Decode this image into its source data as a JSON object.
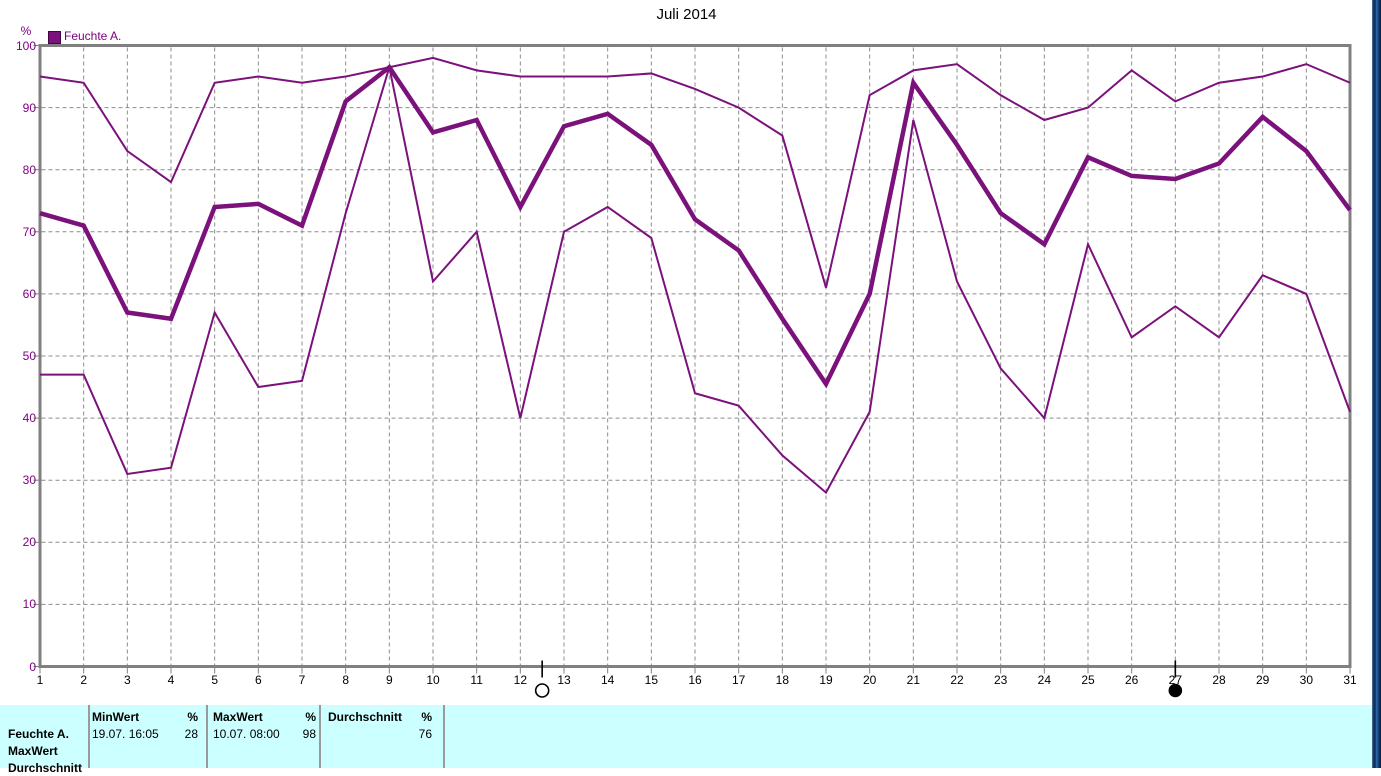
{
  "title": "Juli 2014",
  "colors": {
    "line_purple": "#7b117b",
    "label_purple": "#800080",
    "frame_gray": "#808080",
    "grid_gray": "#8c8c8c",
    "table_background": "#ccffff",
    "separator_gray": "#9a9a9a"
  },
  "legend": {
    "label": "Feuchte A."
  },
  "y_axis": {
    "unit": "%",
    "min": 0,
    "max": 100,
    "tick_step": 10
  },
  "chart_data": {
    "type": "line",
    "title": "Juli 2014",
    "x": [
      1,
      2,
      3,
      4,
      5,
      6,
      7,
      8,
      9,
      10,
      11,
      12,
      13,
      14,
      15,
      16,
      17,
      18,
      19,
      20,
      21,
      22,
      23,
      24,
      25,
      26,
      27,
      28,
      29,
      30,
      31
    ],
    "xlabel": "",
    "ylabel": "%",
    "ylim": [
      0,
      100
    ],
    "grid": true,
    "legend_position": "top-left",
    "series": [
      {
        "name": "MaxWert",
        "thick": false,
        "values": [
          95,
          94,
          83,
          78,
          94,
          95,
          94,
          95,
          96.5,
          98,
          96,
          95,
          95,
          95,
          95.5,
          93,
          90,
          85.5,
          61,
          92,
          96,
          97,
          92,
          88,
          90,
          96,
          91,
          94,
          95,
          97,
          94
        ]
      },
      {
        "name": "Durchschnitt",
        "thick": true,
        "values": [
          73,
          71,
          57,
          56,
          74,
          74.5,
          71,
          91,
          96.5,
          86,
          88,
          74,
          87,
          89,
          84,
          72,
          67,
          56,
          45.5,
          60,
          94,
          84,
          73,
          68,
          82,
          79,
          78.5,
          81,
          88.5,
          83,
          73.5
        ]
      },
      {
        "name": "MinWert",
        "thick": false,
        "values": [
          47,
          47,
          31,
          32,
          57,
          45,
          46,
          73,
          96.5,
          62,
          70,
          40,
          70,
          74,
          69,
          44,
          42,
          34,
          28,
          41,
          88,
          62,
          48,
          40,
          68,
          53,
          58,
          53,
          63,
          60,
          41
        ]
      }
    ]
  },
  "markers": [
    {
      "shape": "open-circle",
      "name": "full-moon-marker",
      "day": 12.5
    },
    {
      "shape": "filled-circle",
      "name": "new-moon-marker",
      "day": 27
    }
  ],
  "summary_table": {
    "row_labels": [
      "Feuchte A.",
      "MaxWert",
      "Durchschnitt"
    ],
    "columns": [
      {
        "header": "MinWert",
        "unit": "%",
        "datetime": "19.07.  16:05",
        "value": "28"
      },
      {
        "header": "MaxWert",
        "unit": "%",
        "datetime": "10.07.  08:00",
        "value": "98"
      },
      {
        "header": "Durchschnitt",
        "unit": "%",
        "datetime": "",
        "value": "76"
      }
    ]
  }
}
